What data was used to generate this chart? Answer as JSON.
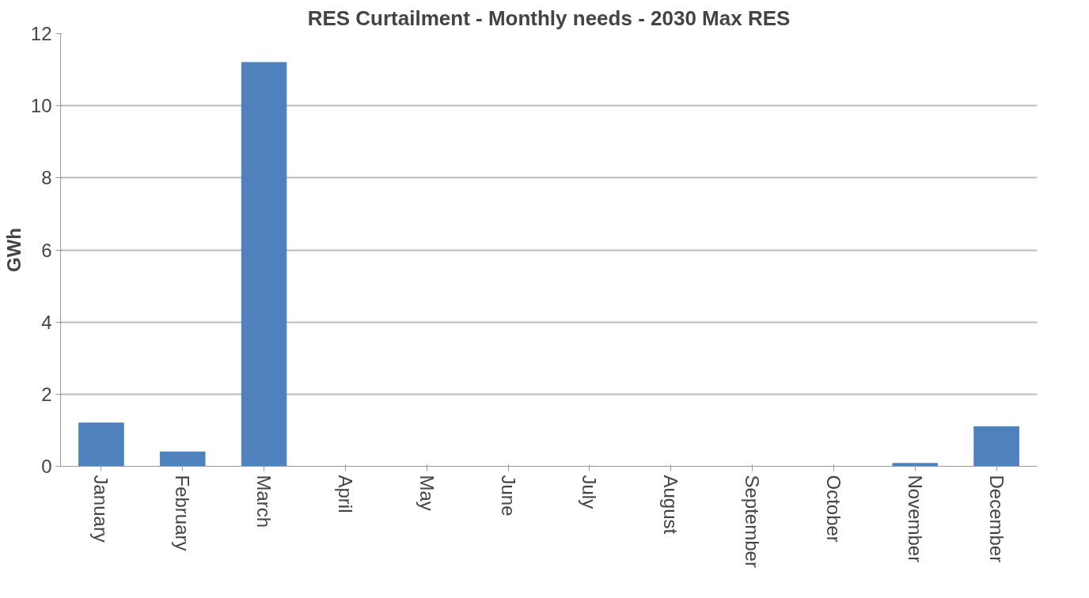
{
  "chart_data": {
    "type": "bar",
    "title": "RES Curtailment - Monthly needs - 2030 Max RES",
    "ylabel": "GWh",
    "categories": [
      "January",
      "February",
      "March",
      "April",
      "May",
      "June",
      "July",
      "August",
      "September",
      "October",
      "November",
      "December"
    ],
    "values": [
      1.2,
      0.4,
      11.2,
      0,
      0,
      0,
      0,
      0,
      0,
      0,
      0.08,
      1.1
    ],
    "color": "#4f81bd",
    "ylim": [
      0,
      12
    ],
    "yticks": [
      0,
      2,
      4,
      6,
      8,
      10,
      12
    ],
    "grid": "y"
  }
}
